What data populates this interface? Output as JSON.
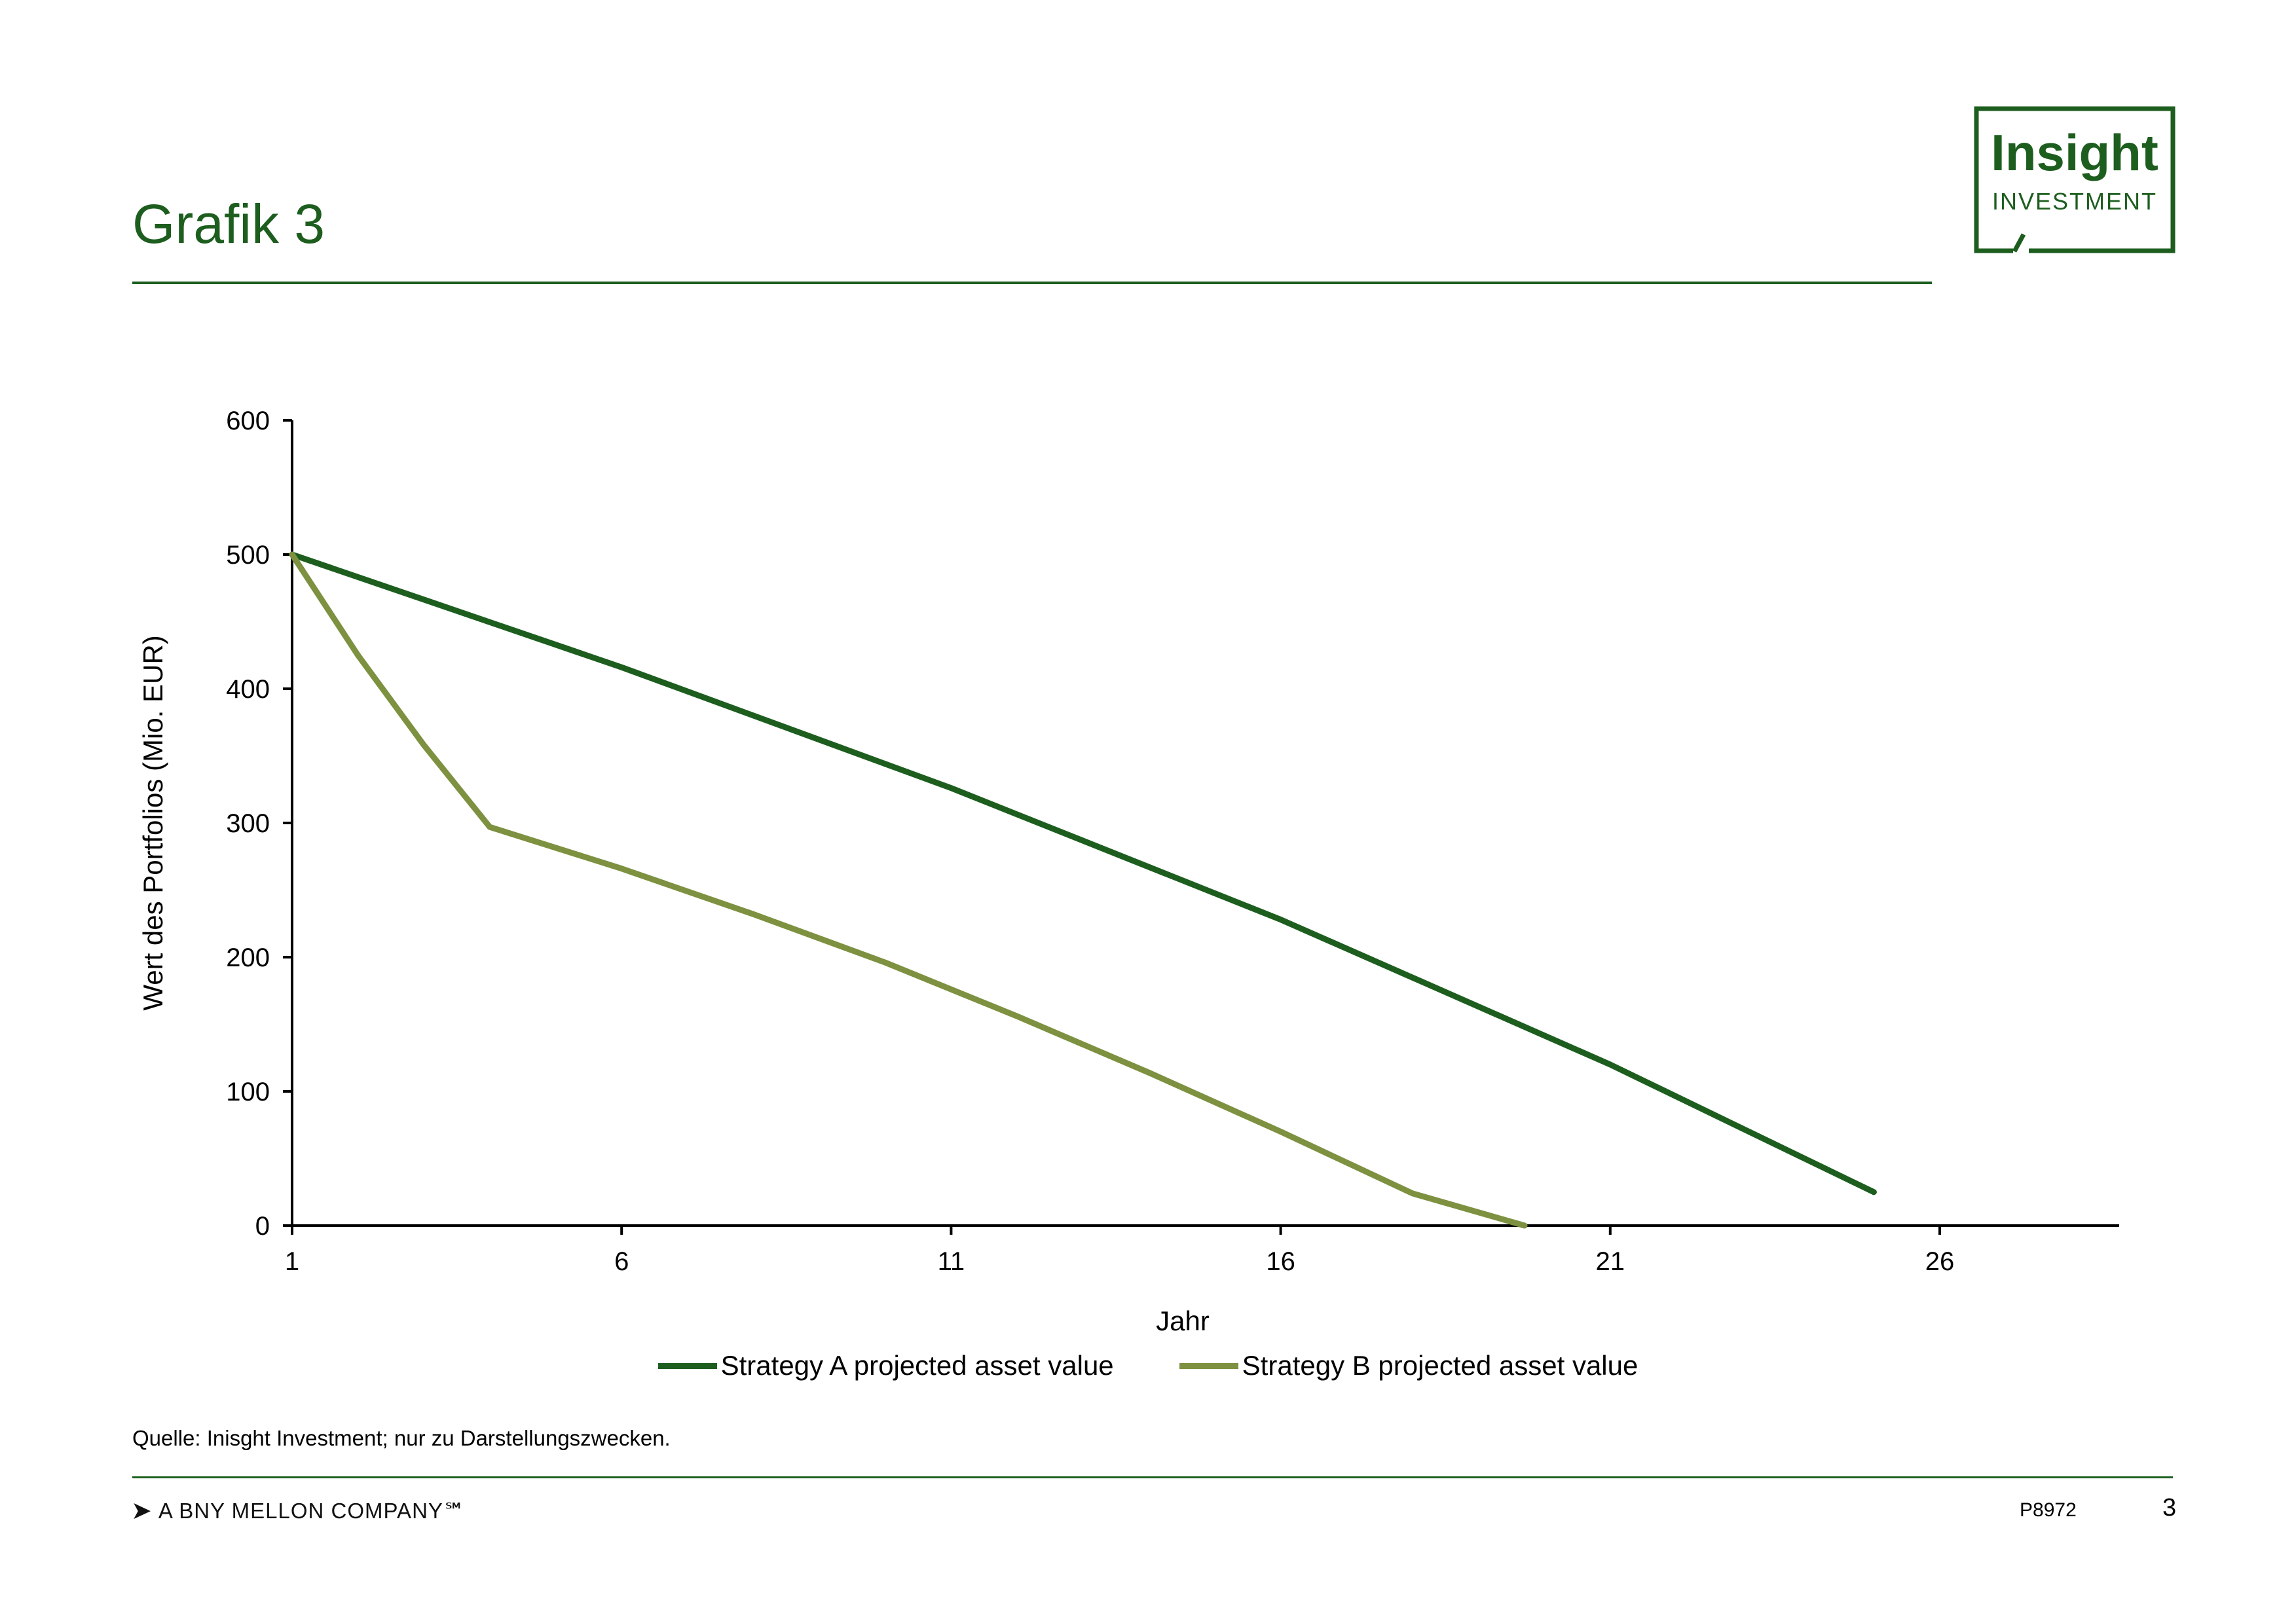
{
  "header": {
    "title": "Grafik 3"
  },
  "logo": {
    "line1": "Insight",
    "line2": "INVESTMENT",
    "color": "#1d5e1f"
  },
  "chart_data": {
    "type": "line",
    "xlabel": "Jahr",
    "ylabel": "Wert des Portfolios (Mio. EUR)",
    "xlim": [
      1,
      30
    ],
    "ylim": [
      0,
      600
    ],
    "xticks": [
      1,
      6,
      11,
      16,
      21,
      26
    ],
    "yticks": [
      0,
      100,
      200,
      300,
      400,
      500,
      600
    ],
    "grid": false,
    "legend_position": "bottom",
    "series": [
      {
        "name": "Strategy A projected asset value",
        "color": "#1d5e1f",
        "x": [
          1,
          6,
          11,
          16,
          21,
          25
        ],
        "y": [
          500,
          416,
          326,
          228,
          120,
          25
        ]
      },
      {
        "name": "Strategy B projected asset value",
        "color": "#7d9140",
        "x": [
          1,
          2,
          3,
          4,
          6,
          8,
          10,
          12,
          14,
          16,
          18,
          19.7
        ],
        "y": [
          500,
          425,
          358,
          297,
          266,
          232,
          196,
          156,
          114,
          70,
          24,
          0
        ]
      }
    ]
  },
  "source": "Quelle: Inisght Investment; nur zu Darstellungszwecken.",
  "footer": {
    "company": "A BNY MELLON COMPANY℠",
    "arrow": "➤",
    "code": "P8972",
    "page": "3"
  }
}
